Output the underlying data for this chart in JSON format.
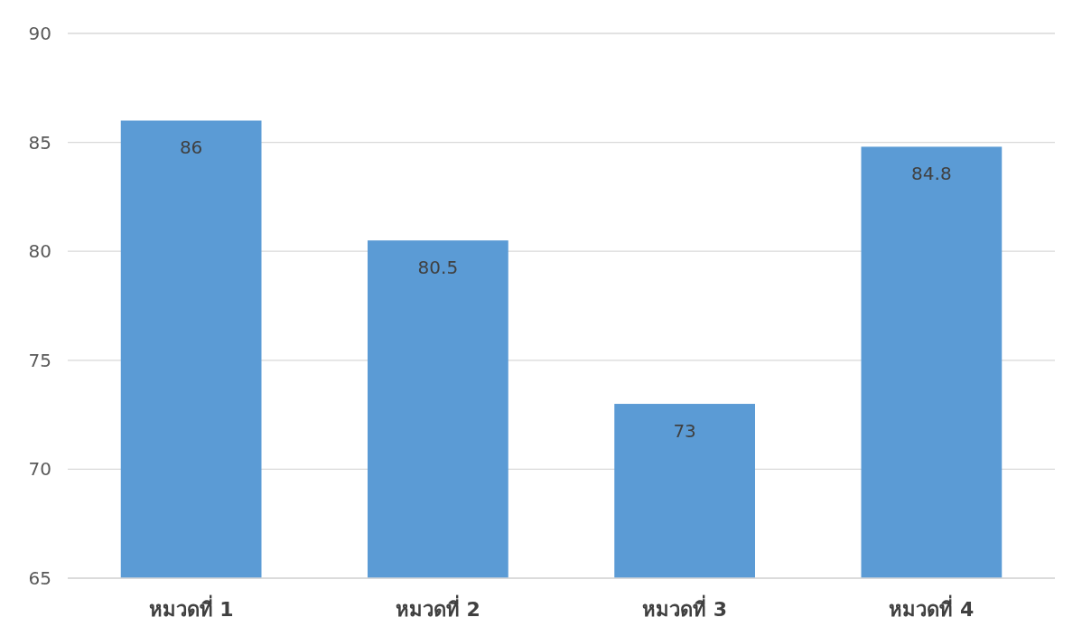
{
  "chart_data": {
    "type": "bar",
    "categories": [
      "หมวดที่ 1",
      "หมวดที่ 2",
      "หมวดที่ 3",
      "หมวดที่ 4"
    ],
    "values": [
      86,
      80.5,
      73,
      84.8
    ],
    "color": "#5b9bd5",
    "ylim": [
      65,
      90
    ],
    "yticks": [
      65,
      70,
      75,
      80,
      85,
      90
    ],
    "grid": "y",
    "data_labels": true
  }
}
